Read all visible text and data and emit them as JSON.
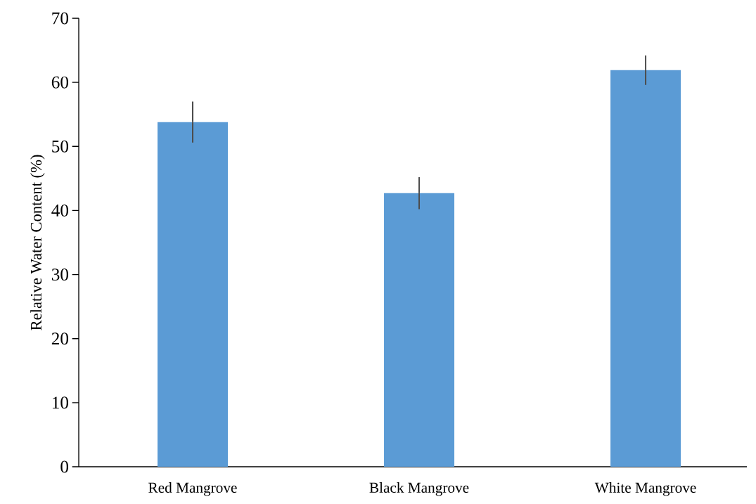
{
  "chart_data": {
    "type": "bar",
    "ylabel": "Relative  Water Content (%)",
    "categories": [
      "Red Mangrove",
      "Black Mangrove",
      "White Mangrove"
    ],
    "values": [
      53.8,
      42.7,
      61.9
    ],
    "errors": [
      3.2,
      2.5,
      2.3
    ],
    "color": "#5b9bd5",
    "ylim": [
      0,
      70
    ],
    "yticks": [
      0,
      10,
      20,
      30,
      40,
      50,
      60,
      70
    ]
  }
}
